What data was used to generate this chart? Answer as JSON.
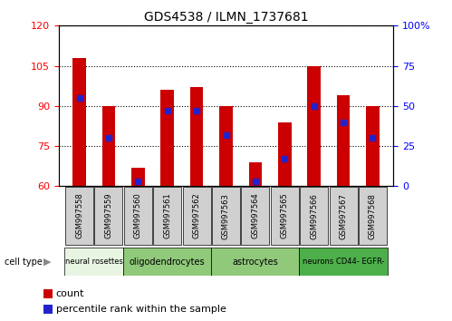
{
  "title": "GDS4538 / ILMN_1737681",
  "samples": [
    "GSM997558",
    "GSM997559",
    "GSM997560",
    "GSM997561",
    "GSM997562",
    "GSM997563",
    "GSM997564",
    "GSM997565",
    "GSM997566",
    "GSM997567",
    "GSM997568"
  ],
  "bar_values": [
    108,
    90,
    67,
    96,
    97,
    90,
    69,
    84,
    105,
    94,
    90
  ],
  "percentile_values": [
    55,
    30,
    3,
    47,
    47,
    32,
    3,
    17,
    50,
    40,
    30
  ],
  "y_min": 60,
  "y_max": 120,
  "y_ticks_left": [
    60,
    75,
    90,
    105,
    120
  ],
  "y_ticks_right": [
    0,
    25,
    50,
    75,
    100
  ],
  "bar_color": "#cc0000",
  "percentile_color": "#2222cc",
  "cell_types": [
    {
      "label": "neural rosettes",
      "start": 0,
      "end": 2,
      "color": "#e8f5e2"
    },
    {
      "label": "oligodendrocytes",
      "start": 2,
      "end": 5,
      "color": "#90c97a"
    },
    {
      "label": "astrocytes",
      "start": 5,
      "end": 8,
      "color": "#90c97a"
    },
    {
      "label": "neurons CD44- EGFR-",
      "start": 8,
      "end": 11,
      "color": "#4daf4a"
    }
  ],
  "bar_width": 0.45,
  "figsize": [
    4.99,
    3.54
  ],
  "dpi": 100
}
